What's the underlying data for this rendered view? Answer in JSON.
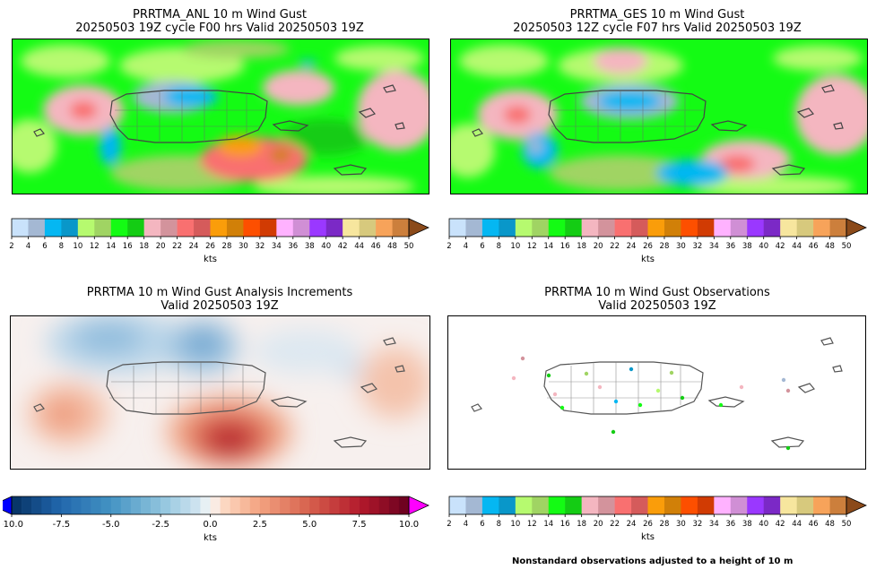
{
  "chart_data": [
    {
      "type": "heatmap",
      "panel": "analysis",
      "title_line1": "PRRTMA_ANL 10 m Wind Gust",
      "title_line2": "20250503 19Z cycle F00 hrs Valid 20250503 19Z",
      "colorbar_label": "kts",
      "colorbar_ticks": [
        2,
        4,
        6,
        8,
        10,
        12,
        14,
        16,
        18,
        20,
        22,
        24,
        26,
        28,
        30,
        32,
        34,
        36,
        38,
        40,
        42,
        44,
        46,
        48,
        50
      ],
      "colorbar_extend": "max",
      "colors": [
        "#c9e2fb",
        "#a4b8d3",
        "#05b7f2",
        "#0997c9",
        "#b6fa6f",
        "#a0d463",
        "#14fb14",
        "#14cc14",
        "#f4b6c0",
        "#d3939c",
        "#f97070",
        "#d55b5b",
        "#fa9d0a",
        "#d18008",
        "#fd4f00",
        "#d13b03",
        "#ffb2ff",
        "#d08fd5",
        "#9a38ff",
        "#7b29c6",
        "#f7e69e",
        "#d7c97d",
        "#f7a35a",
        "#cc7f3c",
        "#8b4a1a"
      ]
    },
    {
      "type": "heatmap",
      "panel": "guess",
      "title_line1": "PRRTMA_GES 10 m Wind Gust",
      "title_line2": "20250503 12Z cycle F07 hrs Valid 20250503 19Z",
      "colorbar_label": "kts",
      "colorbar_ticks": [
        2,
        4,
        6,
        8,
        10,
        12,
        14,
        16,
        18,
        20,
        22,
        24,
        26,
        28,
        30,
        32,
        34,
        36,
        38,
        40,
        42,
        44,
        46,
        48,
        50
      ],
      "colorbar_extend": "max"
    },
    {
      "type": "heatmap",
      "panel": "increments",
      "title_line1": "PRRTMA 10 m Wind Gust Analysis Increments",
      "title_line2": "Valid 20250503 19Z",
      "colorbar_label": "kts",
      "colorbar_ticks": [
        -10.0,
        -7.5,
        -5.0,
        -2.5,
        0.0,
        2.5,
        5.0,
        7.5,
        10.0
      ],
      "colorbar_tick_labels": [
        "-10.0",
        "-7.5",
        "-5.0",
        "-2.5",
        "0.0",
        "2.5",
        "5.0",
        "7.5",
        "10.0"
      ],
      "colorbar_range": [
        -10,
        10
      ],
      "colorbar_extend": "both"
    },
    {
      "type": "scatter",
      "panel": "observations",
      "title_line1": "PRRTMA 10 m Wind Gust Observations",
      "title_line2": "Valid 20250503 19Z",
      "colorbar_label": "kts",
      "colorbar_ticks": [
        2,
        4,
        6,
        8,
        10,
        12,
        14,
        16,
        18,
        20,
        22,
        24,
        26,
        28,
        30,
        32,
        34,
        36,
        38,
        40,
        42,
        44,
        46,
        48,
        50
      ],
      "colorbar_extend": "max",
      "footnote": "Nonstandard observations adjusted to a height of 10 m"
    }
  ]
}
